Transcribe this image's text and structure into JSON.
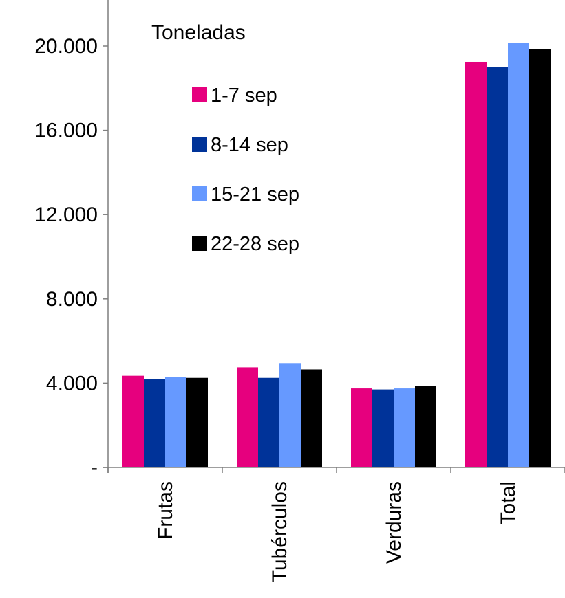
{
  "chart_data": {
    "type": "bar",
    "title": "",
    "ylabel": "Toneladas",
    "xlabel": "",
    "categories": [
      "Frutas",
      "Tubérculos",
      "Verduras",
      "Total"
    ],
    "series": [
      {
        "name": "1-7 sep",
        "color": "#e6007e",
        "values": [
          4350,
          4750,
          3750,
          19250
        ]
      },
      {
        "name": "8-14 sep",
        "color": "#003399",
        "values": [
          4200,
          4250,
          3700,
          19000
        ]
      },
      {
        "name": "15-21 sep",
        "color": "#6699ff",
        "values": [
          4300,
          4950,
          3750,
          20150
        ]
      },
      {
        "name": "22-28 sep",
        "color": "#000000",
        "values": [
          4250,
          4650,
          3850,
          19850
        ]
      }
    ],
    "ylim": [
      0,
      20000
    ],
    "yticks": [
      0,
      4000,
      8000,
      12000,
      16000,
      20000
    ],
    "ytick_labels": [
      "-",
      "4.000",
      "8.000",
      "12.000",
      "16.000",
      "20.000"
    ],
    "grid": false,
    "legend": "top-left, inside plot"
  }
}
